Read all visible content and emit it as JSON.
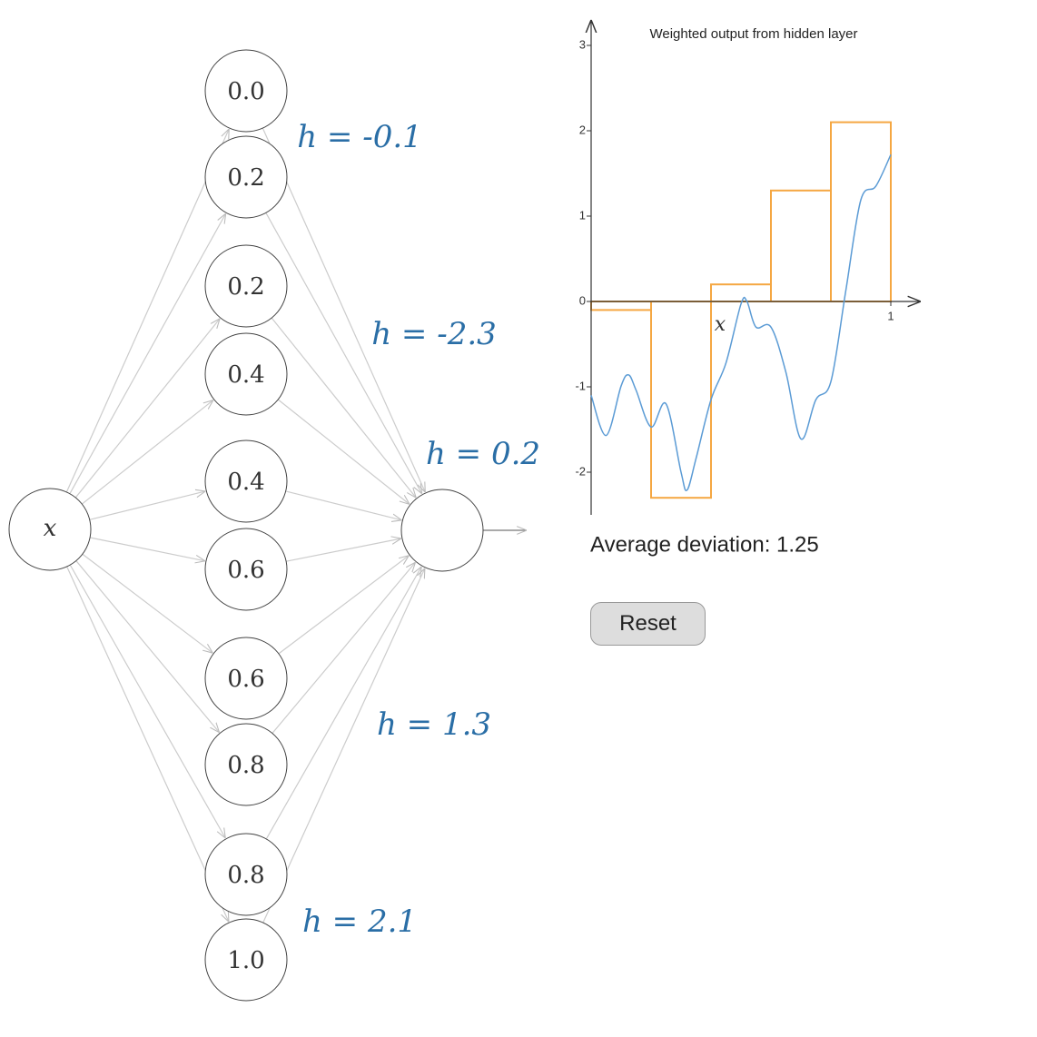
{
  "network": {
    "input_label": "x",
    "hidden_nodes": [
      "0.0",
      "0.2",
      "0.2",
      "0.4",
      "0.4",
      "0.6",
      "0.6",
      "0.8",
      "0.8",
      "1.0"
    ],
    "h_labels": [
      "h = -0.1",
      "h = -2.3",
      "h = 0.2",
      "h = 1.3",
      "h = 2.1"
    ]
  },
  "chart_data": {
    "type": "line",
    "title": "Weighted output from hidden layer",
    "x_label": "x",
    "xlim": [
      0,
      1.1
    ],
    "ylim": [
      -2.5,
      3.3
    ],
    "xticks": [
      1
    ],
    "yticks": [
      -2,
      -1,
      0,
      1,
      2,
      3
    ],
    "steps": {
      "color": "#f5a742",
      "bins": [
        0,
        0.2,
        0.4,
        0.6,
        0.8,
        1.0
      ],
      "values": [
        -0.1,
        -2.3,
        0.2,
        1.3,
        2.1
      ]
    },
    "series": [
      {
        "color": "#5b9bd5",
        "x": [
          0,
          0.05,
          0.1,
          0.125,
          0.15,
          0.2,
          0.25,
          0.3,
          0.32,
          0.35,
          0.4,
          0.45,
          0.5,
          0.52,
          0.55,
          0.6,
          0.65,
          0.7,
          0.75,
          0.8,
          0.85,
          0.9,
          0.95,
          1.0
        ],
        "values": [
          -1.1,
          -1.57,
          -0.99,
          -0.86,
          -1.04,
          -1.47,
          -1.2,
          -2.0,
          -2.21,
          -1.84,
          -1.15,
          -0.72,
          -0.03,
          0,
          -0.3,
          -0.3,
          -0.83,
          -1.61,
          -1.15,
          -0.94,
          0.13,
          1.19,
          1.35,
          1.72
        ]
      }
    ]
  },
  "status": {
    "deviation": "Average deviation: 1.25",
    "button": "Reset"
  }
}
